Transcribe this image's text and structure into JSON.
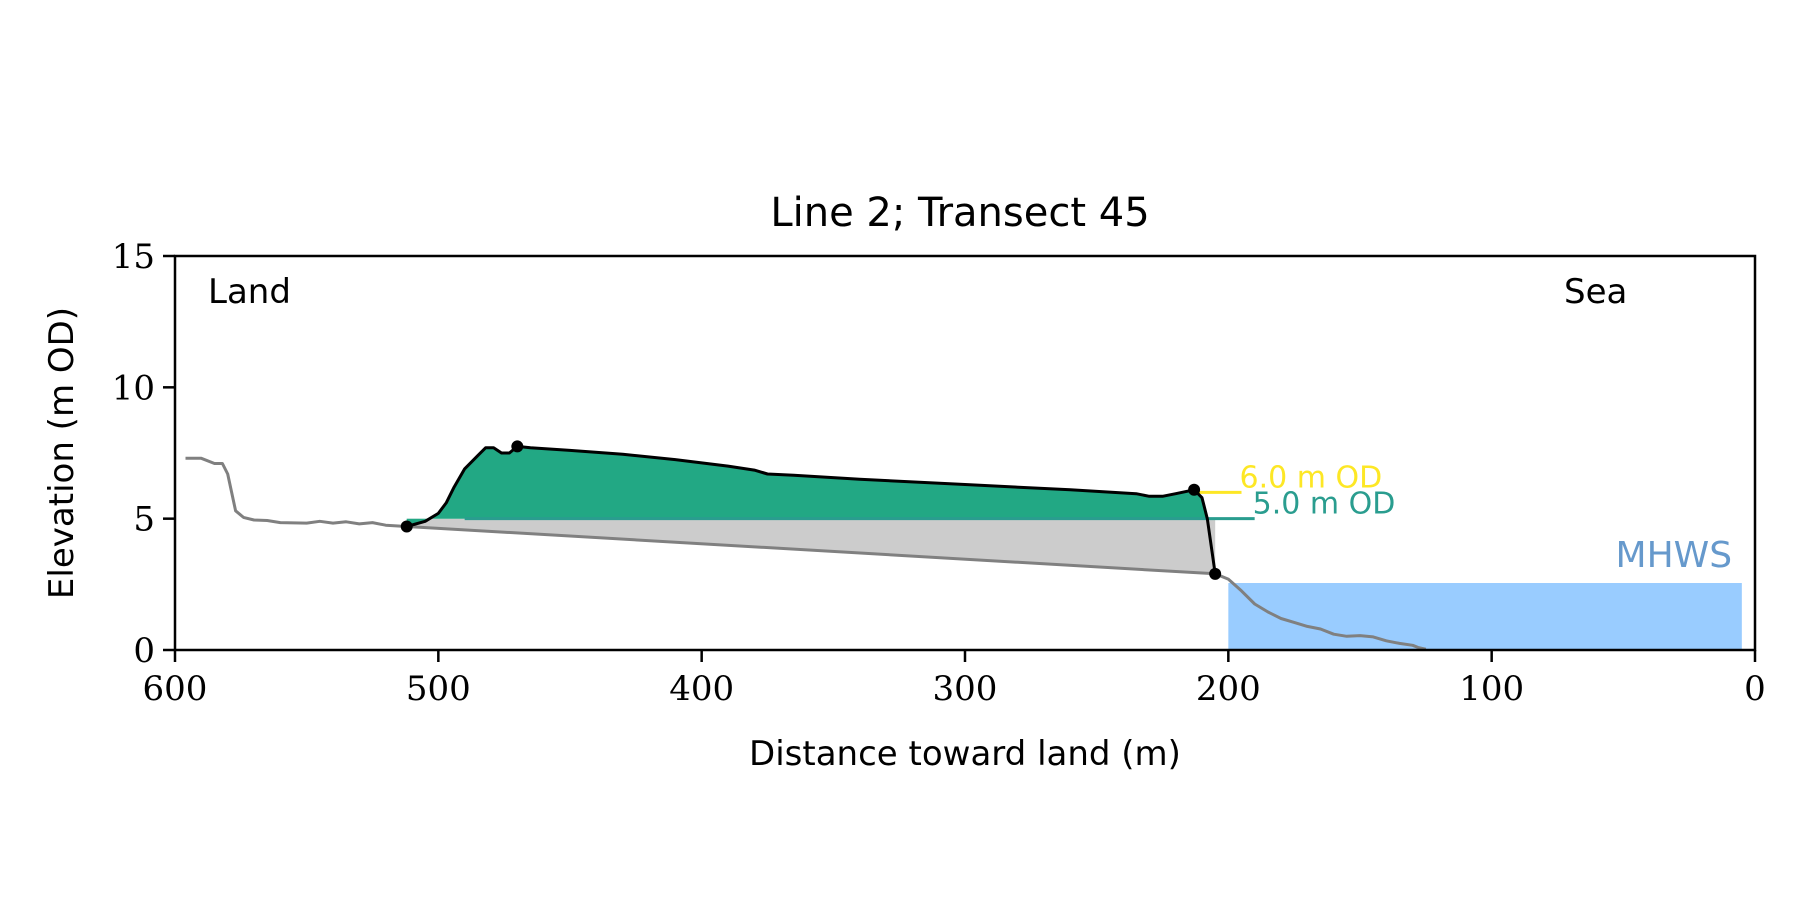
{
  "chart_data": {
    "type": "area",
    "title": "Line 2; Transect 45",
    "xlabel": "Distance toward land (m)",
    "ylabel": "Elevation (m OD)",
    "xlim": [
      600,
      0
    ],
    "ylim": [
      0,
      15
    ],
    "x_ticks": [
      600,
      500,
      400,
      300,
      200,
      100,
      0
    ],
    "y_ticks": [
      0,
      5,
      10,
      15
    ],
    "x_tick_labels": [
      "600",
      "500",
      "400",
      "300",
      "200",
      "100",
      "0"
    ],
    "y_tick_labels": [
      "0",
      "5",
      "10",
      "15"
    ],
    "grid": false,
    "annotations": {
      "land": "Land",
      "sea": "Sea",
      "mhws": "MHWS",
      "level_6": "6.0 m OD",
      "level_5": "5.0 m OD"
    },
    "colors": {
      "dune": "#22a884",
      "level_5": "#2a9d8f",
      "level_6": "#fde725",
      "mhws_fill": "#99ccff",
      "mhws_text": "#6699cc",
      "base_fill": "#cccccc",
      "profile_line": "#808080",
      "dune_line": "#000000"
    },
    "mhws": {
      "elevation": 2.55,
      "x_from": 5,
      "x_to": 200
    },
    "levels": [
      {
        "name": "6.0 m OD",
        "elevation": 6.0,
        "x_from": 212,
        "x_to": 195
      },
      {
        "name": "5.0 m OD",
        "elevation": 5.0,
        "x_from": 490,
        "x_to": 190
      }
    ],
    "profile": [
      [
        596,
        7.3
      ],
      [
        590,
        7.3
      ],
      [
        585,
        7.1
      ],
      [
        582,
        7.1
      ],
      [
        580,
        6.7
      ],
      [
        577,
        5.3
      ],
      [
        574,
        5.05
      ],
      [
        570,
        4.95
      ],
      [
        565,
        4.93
      ],
      [
        560,
        4.85
      ],
      [
        550,
        4.83
      ],
      [
        545,
        4.9
      ],
      [
        540,
        4.83
      ],
      [
        535,
        4.88
      ],
      [
        530,
        4.8
      ],
      [
        525,
        4.85
      ],
      [
        520,
        4.75
      ],
      [
        512,
        4.7
      ],
      [
        205,
        2.9
      ],
      [
        200,
        2.7
      ],
      [
        195,
        2.25
      ],
      [
        190,
        1.75
      ],
      [
        185,
        1.45
      ],
      [
        180,
        1.2
      ],
      [
        175,
        1.05
      ],
      [
        170,
        0.9
      ],
      [
        165,
        0.8
      ],
      [
        160,
        0.6
      ],
      [
        155,
        0.52
      ],
      [
        150,
        0.55
      ],
      [
        145,
        0.5
      ],
      [
        140,
        0.35
      ],
      [
        135,
        0.25
      ],
      [
        130,
        0.18
      ],
      [
        128,
        0.1
      ],
      [
        125,
        0.03
      ]
    ],
    "dune_profile": [
      [
        512,
        4.7
      ],
      [
        505,
        4.9
      ],
      [
        500,
        5.2
      ],
      [
        497,
        5.6
      ],
      [
        494,
        6.2
      ],
      [
        490,
        6.9
      ],
      [
        485,
        7.4
      ],
      [
        482,
        7.7
      ],
      [
        479,
        7.7
      ],
      [
        476,
        7.5
      ],
      [
        473,
        7.5
      ],
      [
        470,
        7.75
      ],
      [
        465,
        7.7
      ],
      [
        450,
        7.6
      ],
      [
        430,
        7.45
      ],
      [
        410,
        7.25
      ],
      [
        390,
        7.0
      ],
      [
        380,
        6.85
      ],
      [
        375,
        6.7
      ],
      [
        365,
        6.65
      ],
      [
        340,
        6.5
      ],
      [
        300,
        6.3
      ],
      [
        260,
        6.1
      ],
      [
        235,
        5.95
      ],
      [
        230,
        5.85
      ],
      [
        225,
        5.85
      ],
      [
        220,
        5.95
      ],
      [
        213,
        6.1
      ],
      [
        210,
        5.8
      ],
      [
        208,
        5.0
      ],
      [
        205,
        2.9
      ]
    ],
    "baseline": [
      [
        512,
        4.7
      ],
      [
        205,
        2.9
      ]
    ],
    "key_points": [
      [
        512,
        4.7
      ],
      [
        470,
        7.75
      ],
      [
        213,
        6.1
      ],
      [
        205,
        2.9
      ]
    ]
  }
}
